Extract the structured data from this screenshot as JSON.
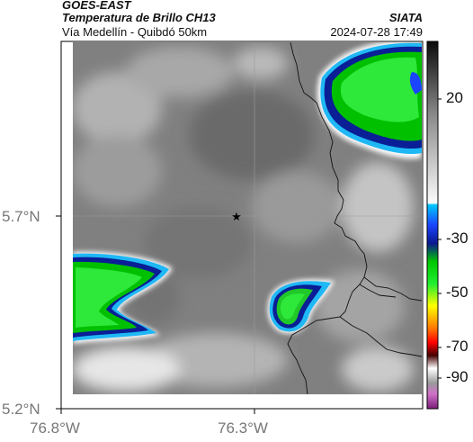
{
  "header": {
    "satellite": "GOES-EAST",
    "product": "Temperatura de Brillo CH13",
    "region": "Vía Medellín - Quibdó 50km",
    "org": "SIATA",
    "timestamp": "2024-07-28 17:49"
  },
  "axes": {
    "lat_labels": [
      "5.7°N",
      "5.2°N"
    ],
    "lon_labels": [
      "76.8°W",
      "76.3°W"
    ]
  },
  "colorbar": {
    "ticks": [
      "20",
      "-30",
      "-50",
      "-70",
      "-90"
    ]
  },
  "marker": {
    "icon": "star-icon"
  }
}
